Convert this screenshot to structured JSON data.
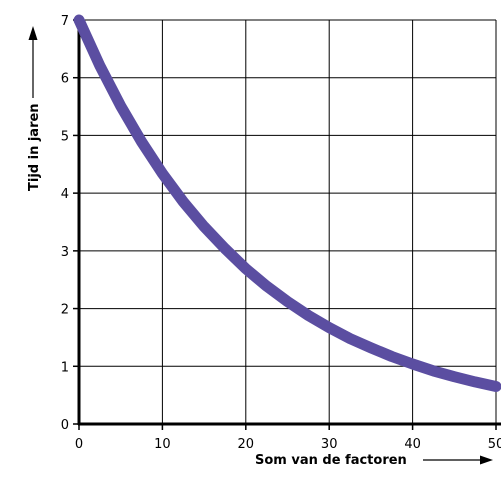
{
  "chart_data": {
    "type": "line",
    "xlabel": "Som van de factoren",
    "ylabel": "Tijd in jaren",
    "xlim": [
      0,
      50
    ],
    "ylim": [
      0,
      7
    ],
    "x_ticks": [
      0,
      10,
      20,
      30,
      40,
      50
    ],
    "y_ticks": [
      0,
      1,
      2,
      3,
      4,
      5,
      6,
      7
    ],
    "x_tick_labels": [
      "0",
      "10",
      "20",
      "30",
      "40",
      "50"
    ],
    "y_tick_labels": [
      "0",
      "1",
      "2",
      "3",
      "4",
      "5",
      "6",
      "7"
    ],
    "grid": true,
    "legend": "none",
    "series": [
      {
        "x": [
          0,
          2.5,
          5,
          7.5,
          10,
          12.5,
          15,
          17.5,
          20,
          22.5,
          25,
          27.5,
          30,
          32.5,
          35,
          37.5,
          40,
          42.5,
          45,
          47.5,
          50
        ],
        "y": [
          7.0,
          6.21,
          5.51,
          4.89,
          4.34,
          3.85,
          3.42,
          3.04,
          2.69,
          2.39,
          2.12,
          1.88,
          1.67,
          1.48,
          1.32,
          1.17,
          1.04,
          0.92,
          0.82,
          0.73,
          0.65
        ],
        "color": "#5b4ea1"
      }
    ]
  }
}
